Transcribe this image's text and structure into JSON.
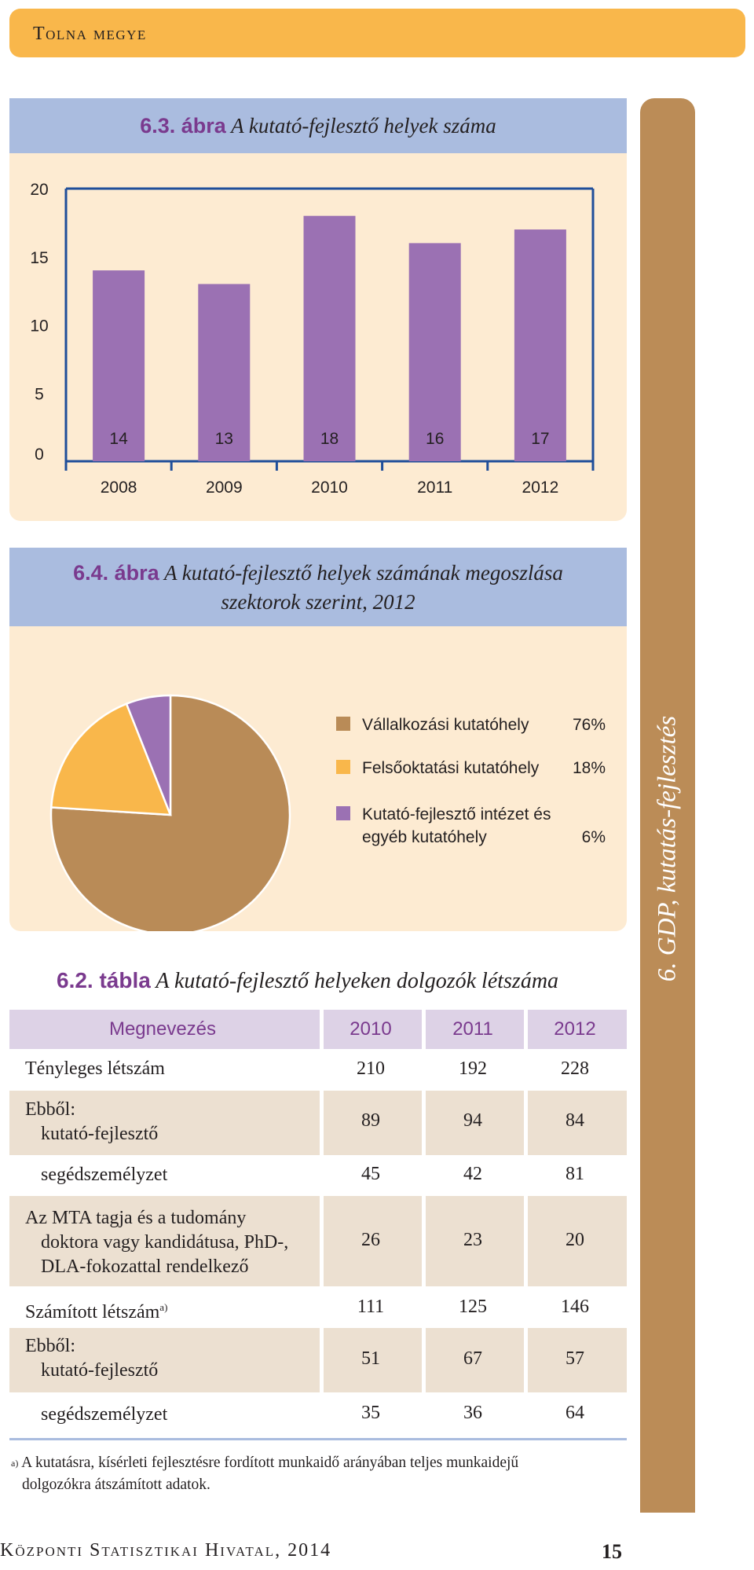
{
  "header": {
    "title": "Tolna megye"
  },
  "side_tab": {
    "label": "6. GDP, kutatás-fejlesztés"
  },
  "figure_63": {
    "number": "6.3. ábra",
    "title": "A kutató-fejlesztő helyek száma"
  },
  "figure_64": {
    "number": "6.4. ábra",
    "title_line1": "A kutató-fejlesztő helyek számának megoszlása",
    "title_line2": "szektorok szerint, 2012"
  },
  "table_62": {
    "number": "6.2. tábla",
    "title": "A kutató-fejlesztő helyeken dolgozók létszáma",
    "columns": [
      "Megnevezés",
      "2010",
      "2011",
      "2012"
    ],
    "rows": [
      {
        "label": "Tényleges létszám",
        "values": [
          "210",
          "192",
          "228"
        ]
      },
      {
        "label_line1": "Ebből:",
        "label_line2": "kutató-fejlesztő",
        "values": [
          "89",
          "94",
          "84"
        ]
      },
      {
        "label": "segédszemélyzet",
        "values": [
          "45",
          "42",
          "81"
        ]
      },
      {
        "label_line1": "Az MTA tagja és a tudomány",
        "label_line2": "doktora vagy kandidátusa, PhD-,",
        "label_line3": "DLA-fokozattal rendelkező",
        "values": [
          "26",
          "23",
          "20"
        ]
      },
      {
        "label": "Számított létszám",
        "sup": "a)",
        "values": [
          "111",
          "125",
          "146"
        ]
      },
      {
        "label_line1": "Ebből:",
        "label_line2": "kutató-fejlesztő",
        "values": [
          "51",
          "67",
          "57"
        ]
      },
      {
        "label": "segédszemélyzet",
        "values": [
          "35",
          "36",
          "64"
        ]
      }
    ]
  },
  "footnote": {
    "marker": "a)",
    "line1": "A kutatásra, kísérleti fejlesztésre fordított munkaidő arányában teljes munkaidejű",
    "line2": "dolgozókra átszámított adatok."
  },
  "footer": {
    "publisher": "Központi Statisztikai Hivatal, 2014",
    "page": "15"
  },
  "chart_data": [
    {
      "type": "bar",
      "categories": [
        "2008",
        "2009",
        "2010",
        "2011",
        "2012"
      ],
      "values": [
        14,
        13,
        18,
        16,
        17
      ],
      "ylim": [
        0,
        20
      ],
      "yticks": [
        "0",
        "5",
        "10",
        "15",
        "20"
      ],
      "color": "#9b71b3"
    },
    {
      "type": "pie",
      "labels": [
        "Vállalkozási kutatóhely",
        "Felsőoktatási kutatóhely",
        "Kutató-fejlesztő intézet és egyéb kutatóhely"
      ],
      "label_lines": [
        [
          "Vállalkozási kutatóhely"
        ],
        [
          "Felsőoktatási kutatóhely"
        ],
        [
          "Kutató-fejlesztő intézet és",
          "egyéb kutatóhely"
        ]
      ],
      "values": [
        76,
        18,
        6
      ],
      "value_labels": [
        "76%",
        "18%",
        "6%"
      ],
      "colors": [
        "#b98b57",
        "#f9b74b",
        "#9b71b3"
      ]
    }
  ]
}
